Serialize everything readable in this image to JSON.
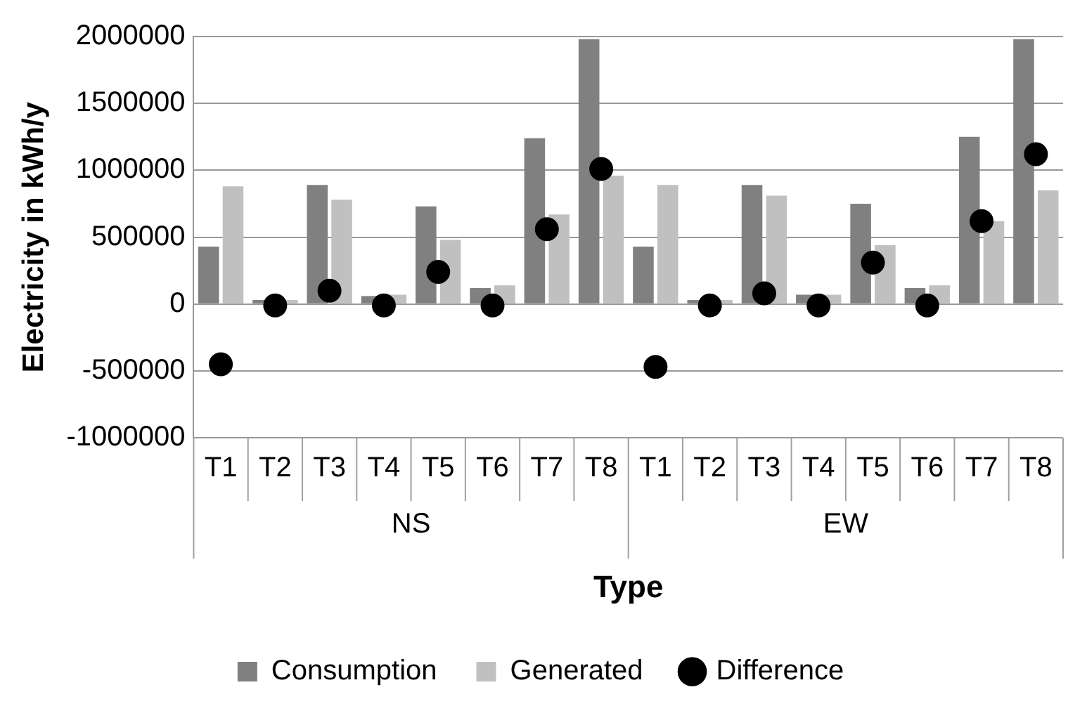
{
  "chart_data": {
    "type": "bar",
    "xlabel": "Type",
    "ylabel": "Electricity in kWh/y",
    "categories": [
      "T1",
      "T2",
      "T3",
      "T4",
      "T5",
      "T6",
      "T7",
      "T8",
      "T1",
      "T2",
      "T3",
      "T4",
      "T5",
      "T6",
      "T7",
      "T8"
    ],
    "series": [
      {
        "name": "Consumption",
        "color": "#808080",
        "values": [
          430000,
          30000,
          890000,
          60000,
          730000,
          120000,
          1240000,
          1980000,
          430000,
          30000,
          890000,
          70000,
          750000,
          120000,
          1250000,
          1980000
        ]
      },
      {
        "name": "Generated",
        "color": "#c0c0c0",
        "values": [
          880000,
          30000,
          780000,
          70000,
          480000,
          140000,
          670000,
          960000,
          890000,
          30000,
          810000,
          70000,
          440000,
          140000,
          620000,
          850000
        ]
      },
      {
        "name": "Difference",
        "type": "scatter",
        "color": "#000000",
        "values": [
          -450000,
          -10000,
          100000,
          -10000,
          240000,
          -10000,
          560000,
          1010000,
          -470000,
          -10000,
          80000,
          -10000,
          310000,
          -10000,
          620000,
          1120000
        ]
      }
    ],
    "annotations": [
      "NS",
      "EW"
    ],
    "ylim": [
      -1000000,
      2000000
    ],
    "yticks": [
      -1000000,
      -500000,
      0,
      500000,
      1000000,
      1500000,
      2000000
    ],
    "grid": "y",
    "legend": "bottom",
    "marker": "circle"
  }
}
